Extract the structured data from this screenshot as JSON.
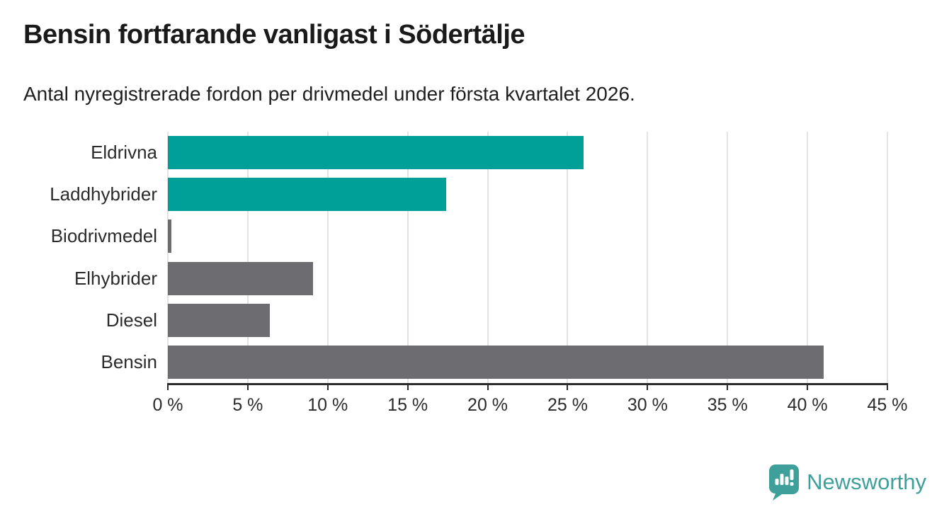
{
  "title": "Bensin fortfarande vanligast i Södertälje",
  "subtitle": "Antal nyregistrerade fordon per drivmedel under första kvartalet 2026.",
  "branding": {
    "name": "Newsworthy",
    "logo_icon": "newsworthy-pin-barchart-icon",
    "color": "#3fa09b"
  },
  "colors": {
    "highlight_bar": "#00a099",
    "default_bar": "#6c6c71",
    "gridline": "#e3e3e3",
    "axis": "#2b2b2b",
    "title_text": "#1a1a1a"
  },
  "chart_data": {
    "type": "bar",
    "orientation": "horizontal",
    "title": "Bensin fortfarande vanligast i Södertälje",
    "subtitle": "Antal nyregistrerade fordon per drivmedel under första kvartalet 2026.",
    "categories": [
      "Eldrivna",
      "Laddhybrider",
      "Biodrivmedel",
      "Elhybrider",
      "Diesel",
      "Bensin"
    ],
    "values": [
      26,
      17.4,
      0.2,
      9.1,
      6.4,
      41
    ],
    "unit": "%",
    "bar_colors": [
      "#00a099",
      "#00a099",
      "#6c6c71",
      "#6c6c71",
      "#6c6c71",
      "#6c6c71"
    ],
    "xlabel": "",
    "ylabel": "",
    "xlim": [
      0,
      45
    ],
    "x_tick_values": [
      0,
      5,
      10,
      15,
      20,
      25,
      30,
      35,
      40,
      45
    ],
    "x_tick_labels": [
      "0 %",
      "5 %",
      "10 %",
      "15 %",
      "20 %",
      "25 %",
      "30 %",
      "35 %",
      "40 %",
      "45 %"
    ],
    "grid": "vertical",
    "legend": "none"
  }
}
